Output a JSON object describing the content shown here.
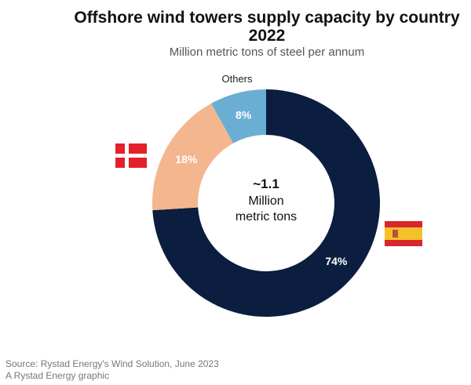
{
  "chart_data": {
    "type": "pie",
    "title_line1": "Offshore wind towers supply capacity by country",
    "title_line2": "2022",
    "subtitle": "Million metric tons of steel per annum",
    "center_value": "~1.1",
    "center_unit_line1": "Million",
    "center_unit_line2": "metric tons",
    "slices": [
      {
        "name": "Spain",
        "value": 74,
        "label": "74%",
        "color": "#0b1e3f"
      },
      {
        "name": "Denmark",
        "value": 18,
        "label": "18%",
        "color": "#f4b68e"
      },
      {
        "name": "Others",
        "value": 8,
        "label": "8%",
        "color": "#6aaed3",
        "outer_label": "Others"
      }
    ]
  },
  "footer": {
    "source": "Source: Rystad Energy's Wind Solution,  June 2023",
    "credit": "A Rystad Energy graphic"
  }
}
